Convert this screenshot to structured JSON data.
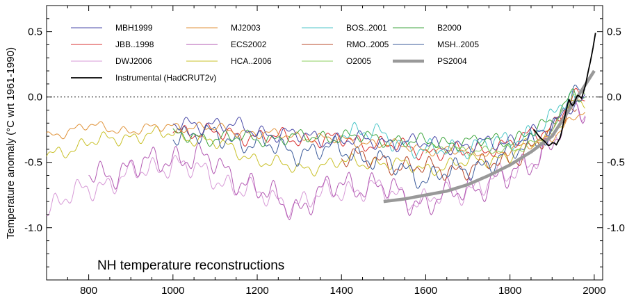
{
  "chart_data": {
    "type": "line",
    "title": "NH temperature reconstructions",
    "xlabel": "",
    "ylabel": "Temperature anomaly (°C wrt 1961-1990)",
    "xlim": [
      700,
      2020
    ],
    "ylim": [
      -1.4,
      0.7
    ],
    "x_ticks": [
      800,
      1000,
      1200,
      1400,
      1600,
      1800,
      2000
    ],
    "x_tick_labels": [
      "800",
      "1000",
      "1200",
      "1400",
      "1600",
      "1800",
      "2000"
    ],
    "y_ticks": [
      0.5,
      0.0,
      -0.5,
      -1.0
    ],
    "y_tick_labels": [
      "0.5",
      "0.0",
      "-0.5",
      "-1.0"
    ],
    "zero_line": true,
    "grid": false,
    "legend_position": "top",
    "series": [
      {
        "name": "MBH1999",
        "color": "#4a4aa8",
        "start": 1000,
        "end": 1980,
        "base": [
          [
            1000,
            -0.22
          ],
          [
            1100,
            -0.2
          ],
          [
            1200,
            -0.26
          ],
          [
            1300,
            -0.3
          ],
          [
            1400,
            -0.33
          ],
          [
            1500,
            -0.34
          ],
          [
            1600,
            -0.36
          ],
          [
            1700,
            -0.38
          ],
          [
            1800,
            -0.33
          ],
          [
            1900,
            -0.25
          ],
          [
            1940,
            -0.05
          ],
          [
            1980,
            -0.02
          ]
        ],
        "amp": 0.08,
        "seed": 3
      },
      {
        "name": "MJ2003",
        "color": "#e09238",
        "start": 700,
        "end": 1980,
        "base": [
          [
            700,
            -0.3
          ],
          [
            800,
            -0.22
          ],
          [
            900,
            -0.26
          ],
          [
            1000,
            -0.22
          ],
          [
            1100,
            -0.24
          ],
          [
            1200,
            -0.28
          ],
          [
            1300,
            -0.3
          ],
          [
            1400,
            -0.33
          ],
          [
            1500,
            -0.36
          ],
          [
            1600,
            -0.4
          ],
          [
            1700,
            -0.42
          ],
          [
            1800,
            -0.42
          ],
          [
            1900,
            -0.3
          ],
          [
            1980,
            -0.1
          ]
        ],
        "amp": 0.05,
        "seed": 7
      },
      {
        "name": "BOS..2001",
        "color": "#4cc6c8",
        "start": 1400,
        "end": 1960,
        "base": [
          [
            1400,
            -0.25
          ],
          [
            1500,
            -0.3
          ],
          [
            1600,
            -0.42
          ],
          [
            1700,
            -0.38
          ],
          [
            1800,
            -0.34
          ],
          [
            1900,
            -0.18
          ],
          [
            1940,
            0.02
          ],
          [
            1960,
            -0.05
          ]
        ],
        "amp": 0.1,
        "seed": 11
      },
      {
        "name": "B2000",
        "color": "#3fa63f",
        "start": 1000,
        "end": 1980,
        "base": [
          [
            1000,
            -0.3
          ],
          [
            1200,
            -0.32
          ],
          [
            1400,
            -0.3
          ],
          [
            1500,
            -0.32
          ],
          [
            1600,
            -0.35
          ],
          [
            1700,
            -0.34
          ],
          [
            1800,
            -0.33
          ],
          [
            1900,
            -0.2
          ],
          [
            1950,
            0.05
          ],
          [
            1980,
            0.0
          ]
        ],
        "amp": 0.07,
        "seed": 13
      },
      {
        "name": "JBB..1998",
        "color": "#d93030",
        "start": 1000,
        "end": 1980,
        "base": [
          [
            1000,
            -0.25
          ],
          [
            1100,
            -0.28
          ],
          [
            1200,
            -0.3
          ],
          [
            1300,
            -0.32
          ],
          [
            1400,
            -0.33
          ],
          [
            1500,
            -0.36
          ],
          [
            1600,
            -0.42
          ],
          [
            1700,
            -0.42
          ],
          [
            1800,
            -0.36
          ],
          [
            1900,
            -0.22
          ],
          [
            1950,
            0.0
          ],
          [
            1980,
            -0.05
          ]
        ],
        "amp": 0.08,
        "seed": 17
      },
      {
        "name": "ECS2002",
        "color": "#b35ab3",
        "start": 800,
        "end": 1980,
        "base": [
          [
            800,
            -0.6
          ],
          [
            900,
            -0.55
          ],
          [
            1000,
            -0.45
          ],
          [
            1100,
            -0.5
          ],
          [
            1200,
            -0.72
          ],
          [
            1300,
            -0.85
          ],
          [
            1400,
            -0.65
          ],
          [
            1500,
            -0.7
          ],
          [
            1600,
            -0.82
          ],
          [
            1700,
            -0.7
          ],
          [
            1800,
            -0.62
          ],
          [
            1900,
            -0.35
          ],
          [
            1950,
            -0.1
          ],
          [
            1980,
            -0.1
          ]
        ],
        "amp": 0.14,
        "seed": 19
      },
      {
        "name": "RMO..2005",
        "color": "#b84a2a",
        "start": 1400,
        "end": 1960,
        "base": [
          [
            1400,
            -0.45
          ],
          [
            1500,
            -0.5
          ],
          [
            1600,
            -0.55
          ],
          [
            1700,
            -0.55
          ],
          [
            1800,
            -0.48
          ],
          [
            1900,
            -0.3
          ],
          [
            1940,
            -0.05
          ],
          [
            1960,
            -0.1
          ]
        ],
        "amp": 0.1,
        "seed": 23
      },
      {
        "name": "MSH..2005",
        "color": "#3a5a9a",
        "start": 1000,
        "end": 1980,
        "base": [
          [
            1000,
            -0.28
          ],
          [
            1100,
            -0.3
          ],
          [
            1200,
            -0.36
          ],
          [
            1300,
            -0.42
          ],
          [
            1400,
            -0.4
          ],
          [
            1500,
            -0.5
          ],
          [
            1600,
            -0.62
          ],
          [
            1700,
            -0.55
          ],
          [
            1800,
            -0.45
          ],
          [
            1900,
            -0.25
          ],
          [
            1950,
            0.02
          ],
          [
            1980,
            0.0
          ]
        ],
        "amp": 0.11,
        "seed": 29
      },
      {
        "name": "DWJ2006",
        "color": "#d79ad7",
        "start": 700,
        "end": 1980,
        "base": [
          [
            700,
            -0.85
          ],
          [
            800,
            -0.7
          ],
          [
            900,
            -0.6
          ],
          [
            1000,
            -0.5
          ],
          [
            1100,
            -0.62
          ],
          [
            1200,
            -0.75
          ],
          [
            1300,
            -0.82
          ],
          [
            1400,
            -0.7
          ],
          [
            1500,
            -0.72
          ],
          [
            1600,
            -0.8
          ],
          [
            1700,
            -0.7
          ],
          [
            1800,
            -0.6
          ],
          [
            1900,
            -0.35
          ],
          [
            1950,
            -0.1
          ],
          [
            1980,
            -0.08
          ]
        ],
        "amp": 0.12,
        "seed": 31
      },
      {
        "name": "HCA..2006",
        "color": "#c9c12a",
        "start": 700,
        "end": 1980,
        "base": [
          [
            700,
            -0.45
          ],
          [
            800,
            -0.35
          ],
          [
            900,
            -0.3
          ],
          [
            1000,
            -0.28
          ],
          [
            1100,
            -0.35
          ],
          [
            1200,
            -0.48
          ],
          [
            1300,
            -0.55
          ],
          [
            1400,
            -0.5
          ],
          [
            1500,
            -0.5
          ],
          [
            1600,
            -0.55
          ],
          [
            1700,
            -0.5
          ],
          [
            1800,
            -0.45
          ],
          [
            1900,
            -0.28
          ],
          [
            1950,
            -0.05
          ],
          [
            1980,
            -0.05
          ]
        ],
        "amp": 0.07,
        "seed": 37
      },
      {
        "name": "O2005",
        "color": "#8ccf5f",
        "start": 1600,
        "end": 1980,
        "base": [
          [
            1600,
            -0.4
          ],
          [
            1700,
            -0.4
          ],
          [
            1800,
            -0.42
          ],
          [
            1900,
            -0.28
          ],
          [
            1950,
            0.02
          ],
          [
            1980,
            0.0
          ]
        ],
        "amp": 0.05,
        "seed": 41
      },
      {
        "name": "PS2004",
        "color": "#999999",
        "start": 1500,
        "end": 2000,
        "smooth": true,
        "width": 4.5,
        "base": [
          [
            1500,
            -0.8
          ],
          [
            1550,
            -0.78
          ],
          [
            1600,
            -0.75
          ],
          [
            1650,
            -0.72
          ],
          [
            1700,
            -0.67
          ],
          [
            1750,
            -0.6
          ],
          [
            1800,
            -0.52
          ],
          [
            1850,
            -0.42
          ],
          [
            1900,
            -0.3
          ],
          [
            1950,
            -0.05
          ],
          [
            2000,
            0.2
          ]
        ]
      },
      {
        "name": "Instrumental (HadCRUT2v)",
        "color": "#000000",
        "start": 1856,
        "end": 2004,
        "width": 1.8,
        "base": [
          [
            1856,
            -0.28
          ],
          [
            1870,
            -0.3
          ],
          [
            1880,
            -0.33
          ],
          [
            1890,
            -0.35
          ],
          [
            1900,
            -0.34
          ],
          [
            1910,
            -0.38
          ],
          [
            1920,
            -0.3
          ],
          [
            1930,
            -0.15
          ],
          [
            1940,
            0.0
          ],
          [
            1950,
            -0.05
          ],
          [
            1960,
            0.0
          ],
          [
            1970,
            -0.02
          ],
          [
            1980,
            0.08
          ],
          [
            1990,
            0.25
          ],
          [
            2000,
            0.45
          ],
          [
            2004,
            0.52
          ]
        ],
        "amp": 0.03,
        "seed": 47
      }
    ]
  }
}
